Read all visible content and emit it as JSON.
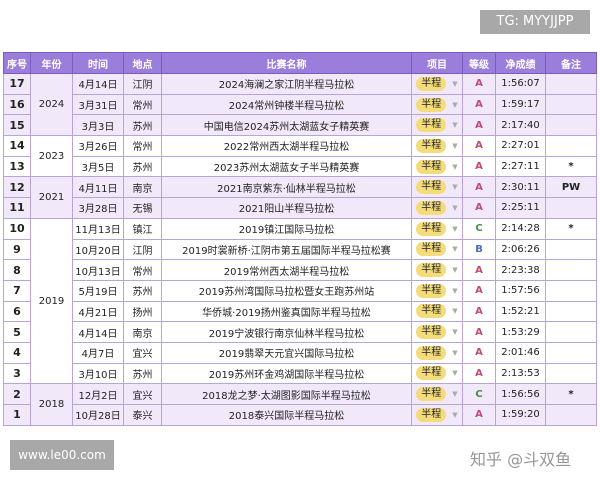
{
  "watermark_top": "TG: MYYJJPP",
  "watermark_bottom": "www.le00.com",
  "watermark_overlay": "知乎 @斗双鱼",
  "headers": [
    "序号",
    "年份",
    "时间",
    "地点",
    "比赛名称",
    "项目",
    "等级",
    "净成绩",
    "备注"
  ],
  "groups": [
    {
      "year": "2024",
      "rows": [
        {
          "no": "17",
          "date": "4月14日",
          "city": "江阴",
          "race": "2024海澜之家江阴半程马拉松",
          "type": "半程",
          "grade": "A",
          "time": "1:56:07",
          "note": ""
        },
        {
          "no": "16",
          "date": "3月31日",
          "city": "常州",
          "race": "2024常州钟楼半程马拉松",
          "type": "半程",
          "grade": "A",
          "time": "1:59:17",
          "note": ""
        },
        {
          "no": "15",
          "date": "3月3日",
          "city": "苏州",
          "race": "中国电信2024苏州太湖蓝女子精英赛",
          "type": "半程",
          "grade": "A",
          "time": "2:17:40",
          "note": ""
        }
      ]
    },
    {
      "year": "2023",
      "rows": [
        {
          "no": "14",
          "date": "3月26日",
          "city": "常州",
          "race": "2022常州西太湖半程马拉松",
          "type": "半程",
          "grade": "A",
          "time": "2:27:01",
          "note": ""
        },
        {
          "no": "13",
          "date": "3月5日",
          "city": "苏州",
          "race": "2023苏州太湖蓝女子半马精英赛",
          "type": "半程",
          "grade": "A",
          "time": "2:27:11",
          "note": "*"
        }
      ]
    },
    {
      "year": "2021",
      "rows": [
        {
          "no": "12",
          "date": "4月11日",
          "city": "南京",
          "race": "2021南京紫东·仙林半程马拉松",
          "type": "半程",
          "grade": "A",
          "time": "2:30:11",
          "note": "PW"
        },
        {
          "no": "11",
          "date": "3月28日",
          "city": "无锡",
          "race": "2021阳山半程马拉松",
          "type": "半程",
          "grade": "A",
          "time": "2:25:11",
          "note": ""
        }
      ]
    },
    {
      "year": "2019",
      "rows": [
        {
          "no": "10",
          "date": "11月13日",
          "city": "镇江",
          "race": "2019镇江国际马拉松",
          "type": "半程",
          "grade": "C",
          "time": "2:14:28",
          "note": "*"
        },
        {
          "no": "9",
          "date": "10月20日",
          "city": "江阴",
          "race": "2019时裳新桥·江阴市第五届国际半程马拉松赛",
          "type": "半程",
          "grade": "B",
          "time": "2:06:26",
          "note": ""
        },
        {
          "no": "8",
          "date": "10月13日",
          "city": "常州",
          "race": "2019常州西太湖半程马拉松",
          "type": "半程",
          "grade": "A",
          "time": "2:23:38",
          "note": ""
        },
        {
          "no": "7",
          "date": "5月19日",
          "city": "苏州",
          "race": "2019苏州湾国际马拉松暨女王跑苏州站",
          "type": "半程",
          "grade": "A",
          "time": "1:57:56",
          "note": ""
        },
        {
          "no": "6",
          "date": "4月21日",
          "city": "扬州",
          "race": "华侨城·2019扬州鉴真国际半程马拉松",
          "type": "半程",
          "grade": "A",
          "time": "1:52:21",
          "note": ""
        },
        {
          "no": "5",
          "date": "4月14日",
          "city": "南京",
          "race": "2019宁波银行南京仙林半程马拉松",
          "type": "半程",
          "grade": "A",
          "time": "1:53:29",
          "note": ""
        },
        {
          "no": "4",
          "date": "4月7日",
          "city": "宜兴",
          "race": "2019翡翠天元宜兴国际马拉松",
          "type": "半程",
          "grade": "A",
          "time": "2:01:46",
          "note": ""
        },
        {
          "no": "3",
          "date": "3月10日",
          "city": "苏州",
          "race": "2019苏州环金鸡湖国际半程马拉松",
          "type": "半程",
          "grade": "A",
          "time": "2:13:53",
          "note": ""
        }
      ]
    },
    {
      "year": "2018",
      "rows": [
        {
          "no": "2",
          "date": "12月2日",
          "city": "宜兴",
          "race": "2018龙之梦·太湖图影国际半程马拉松",
          "type": "半程",
          "grade": "C",
          "time": "1:56:56",
          "note": "*"
        },
        {
          "no": "1",
          "date": "10月28日",
          "city": "泰兴",
          "race": "2018泰兴国际半程马拉松",
          "type": "半程",
          "grade": "A",
          "time": "1:59:20",
          "note": ""
        }
      ]
    }
  ]
}
